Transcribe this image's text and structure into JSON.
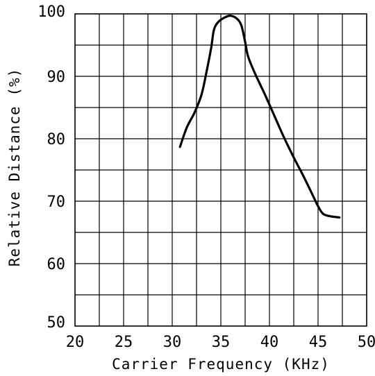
{
  "chart_data": {
    "type": "line",
    "title": "",
    "xlabel": "Carrier Frequency (KHz)",
    "ylabel": "Relative Distance (%)",
    "xlim": [
      20,
      50
    ],
    "ylim": [
      50,
      100
    ],
    "x_ticks": [
      "20",
      "25",
      "30",
      "35",
      "40",
      "45",
      "50"
    ],
    "y_ticks": [
      "50",
      "60",
      "70",
      "80",
      "90",
      "100"
    ],
    "x_minor_step": 2.5,
    "y_minor_step": 5,
    "grid": true,
    "series": [
      {
        "color": "#000000",
        "points": [
          [
            30.8,
            78.7
          ],
          [
            31.5,
            81.8
          ],
          [
            32.3,
            84.2
          ],
          [
            33.0,
            87.0
          ],
          [
            33.5,
            90.5
          ],
          [
            34.0,
            94.5
          ],
          [
            34.3,
            97.5
          ],
          [
            34.8,
            98.8
          ],
          [
            35.5,
            99.5
          ],
          [
            36.0,
            99.7
          ],
          [
            36.6,
            99.3
          ],
          [
            37.1,
            98.2
          ],
          [
            37.5,
            95.5
          ],
          [
            37.8,
            93.2
          ],
          [
            38.5,
            90.5
          ],
          [
            39.5,
            87.2
          ],
          [
            40.5,
            83.7
          ],
          [
            41.5,
            80.2
          ],
          [
            42.5,
            77.0
          ],
          [
            43.5,
            74.0
          ],
          [
            44.5,
            70.8
          ],
          [
            45.0,
            69.2
          ],
          [
            45.5,
            68.0
          ],
          [
            46.2,
            67.6
          ],
          [
            47.2,
            67.4
          ]
        ]
      }
    ]
  }
}
